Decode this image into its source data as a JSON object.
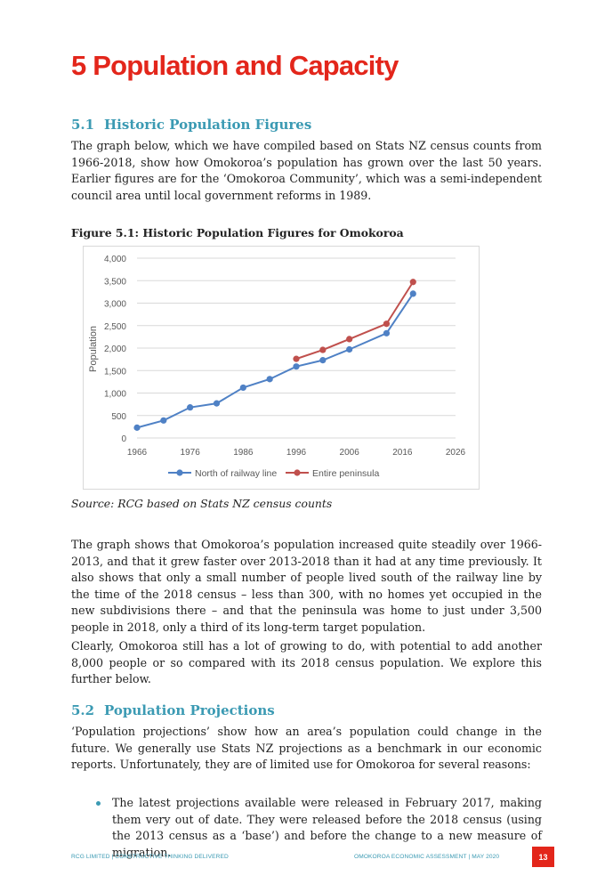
{
  "heading": "5  Population and Capacity",
  "section1": {
    "number": "5.1",
    "title": "Historic Population Figures",
    "para": "The graph below, which we have compiled based on Stats NZ census counts from 1966-2018, show how Omokoroa’s population has grown over the last 50 years. Earlier figures are for the ‘Omokoroa Community’, which was a semi-independent council area until local government reforms in 1989."
  },
  "figure": {
    "caption": "Figure 5.1: Historic Population Figures for Omokoroa",
    "source": "Source: RCG based on Stats NZ census counts"
  },
  "chart_data": {
    "type": "line",
    "ylabel": "Population",
    "xlabel": "",
    "xlim": [
      1966,
      2026
    ],
    "ylim": [
      0,
      4000
    ],
    "x_ticks": [
      1966,
      1976,
      1986,
      1996,
      2006,
      2016,
      2026
    ],
    "y_ticks": [
      0,
      500,
      1000,
      1500,
      2000,
      2500,
      3000,
      3500,
      4000
    ],
    "y_tick_labels": [
      "0",
      "500",
      "1,000",
      "1,500",
      "2,000",
      "2,500",
      "3,000",
      "3,500",
      "4,000"
    ],
    "grid": true,
    "legend_position": "bottom",
    "series": [
      {
        "name": "North of railway line",
        "color": "#4f81c5",
        "x": [
          1966,
          1971,
          1976,
          1981,
          1986,
          1991,
          1996,
          2001,
          2006,
          2013,
          2018
        ],
        "values": [
          230,
          390,
          680,
          770,
          1120,
          1310,
          1590,
          1730,
          1970,
          2330,
          3210
        ]
      },
      {
        "name": "Entire peninsula",
        "color": "#c0504d",
        "x": [
          1996,
          2001,
          2006,
          2013,
          2018
        ],
        "values": [
          1760,
          1960,
          2200,
          2540,
          3470
        ]
      }
    ]
  },
  "para2": "The graph shows that Omokoroa’s population increased quite steadily over 1966-2013, and that it grew faster over 2013-2018 than it had at any time previously. It also shows that only a small number of people lived south of the railway line by the time of the 2018 census – less than 300, with no homes yet occupied in the new subdivisions there – and that the peninsula was home to just under 3,500 people in 2018, only a third of its long-term target population.",
  "para3": "Clearly, Omokoroa still has a lot of growing to do, with potential to add another 8,000 people or so compared with its 2018 census population. We explore this further below.",
  "section2": {
    "number": "5.2",
    "title": "Population Projections",
    "para": "‘Population projections’ show how an area’s population could change in the future. We generally use Stats NZ projections as a benchmark in our economic reports. Unfortunately, they are of limited use for Omokoroa for several reasons:",
    "bullets": [
      "The latest projections available were released in February 2017, making them very out of date. They were released before the 2018 census (using the 2013 census as a ‘base’) and before the change to a new measure of migration."
    ]
  },
  "footer": {
    "left": "RCG LIMITED | CONSTRUCTIVE THINKING DELIVERED",
    "right": "OMOKOROA ECONOMIC ASSESSMENT | MAY 2020",
    "page": "13"
  }
}
